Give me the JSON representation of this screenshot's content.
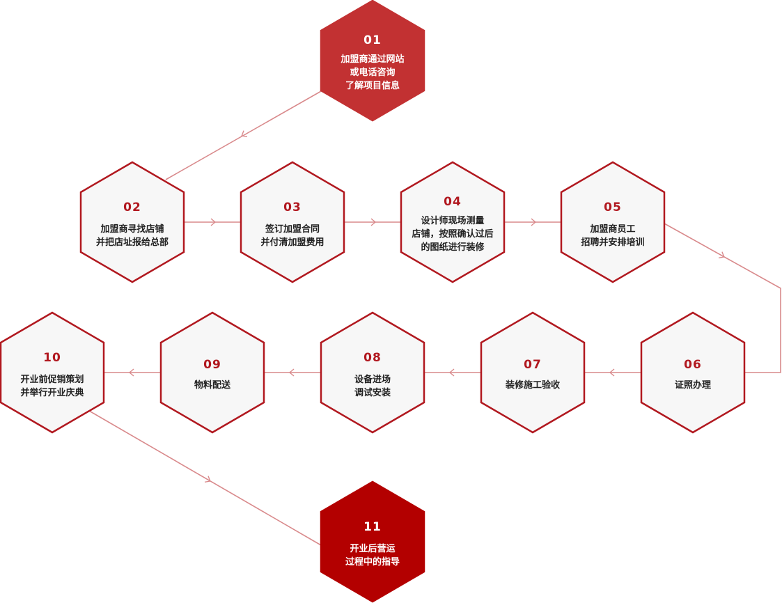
{
  "colors": {
    "accent": "#b1181f",
    "accent_solid": "#b30000",
    "accent_top": "#c23132",
    "node_fill": "#f7f7f7",
    "node_stroke": "#b1181f",
    "label_text": "#222222",
    "connector": "#d98a8c",
    "text_on_accent": "#ffffff"
  },
  "steps": [
    {
      "number": "01",
      "lines": [
        "加盟商通过网站",
        "或电话咨询",
        "了解项目信息"
      ],
      "style": "solid-top"
    },
    {
      "number": "02",
      "lines": [
        "加盟商寻找店铺",
        "并把店址报给总部"
      ],
      "style": "outline"
    },
    {
      "number": "03",
      "lines": [
        "签订加盟合同",
        "并付清加盟费用"
      ],
      "style": "outline"
    },
    {
      "number": "04",
      "lines": [
        "设计师现场测量",
        "店铺，按照确认过后",
        "的图纸进行装修"
      ],
      "style": "outline"
    },
    {
      "number": "05",
      "lines": [
        "加盟商员工",
        "招聘并安排培训"
      ],
      "style": "outline"
    },
    {
      "number": "06",
      "lines": [
        "证照办理"
      ],
      "style": "outline"
    },
    {
      "number": "07",
      "lines": [
        "装修施工验收"
      ],
      "style": "outline"
    },
    {
      "number": "08",
      "lines": [
        "设备进场",
        "调试安装"
      ],
      "style": "outline"
    },
    {
      "number": "09",
      "lines": [
        "物料配送"
      ],
      "style": "outline"
    },
    {
      "number": "10",
      "lines": [
        "开业前促销策划",
        "并举行开业庆典"
      ],
      "style": "outline"
    },
    {
      "number": "11",
      "lines": [
        "开业后营运",
        "过程中的指导"
      ],
      "style": "solid"
    }
  ]
}
